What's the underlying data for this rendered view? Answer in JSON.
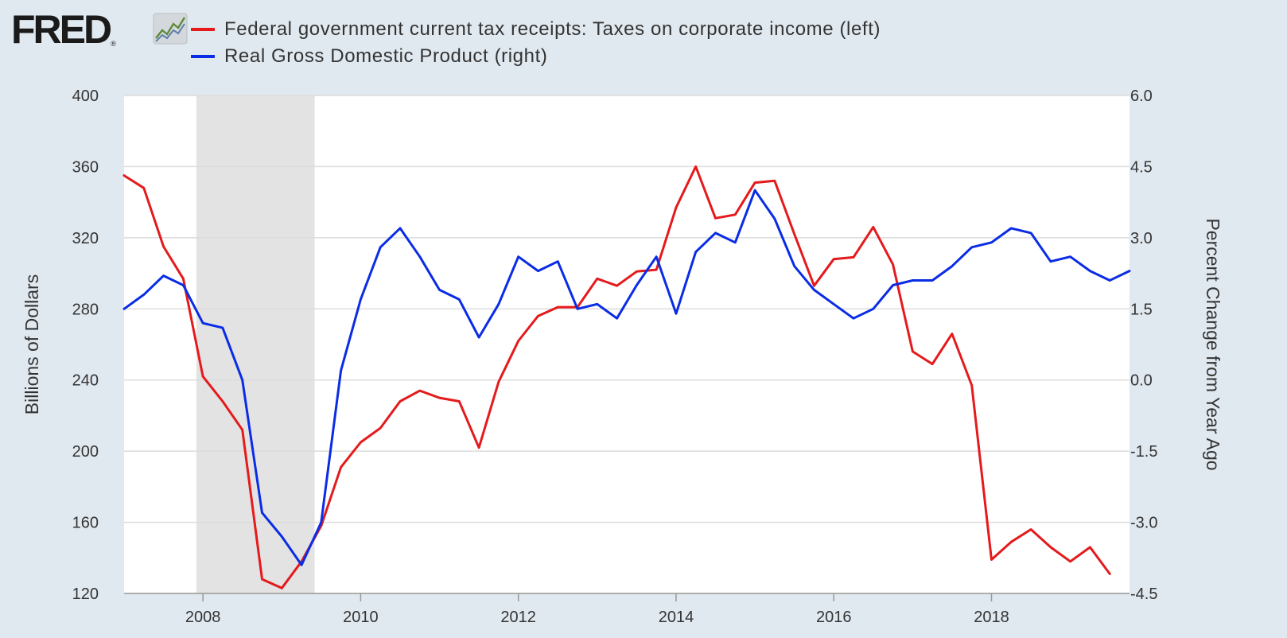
{
  "logo": {
    "text": "FRED",
    "reg": "®",
    "icon": "line-chart-icon"
  },
  "chart_data": {
    "type": "line",
    "title": "",
    "xlabel": "",
    "ylabel_left": "Billions of Dollars",
    "ylabel_right": "Percent Change from Year Ago",
    "ylim_left": [
      120,
      400
    ],
    "ylim_right": [
      -4.5,
      6.0
    ],
    "yticks_left": [
      "400",
      "360",
      "320",
      "280",
      "240",
      "200",
      "160",
      "120"
    ],
    "yticks_right": [
      "6.0",
      "4.5",
      "3.0",
      "1.5",
      "0.0",
      "-1.5",
      "-3.0",
      "-4.5"
    ],
    "xlim": [
      "2007-01-01",
      "2019-10-01"
    ],
    "xticks": [
      "2008",
      "2010",
      "2012",
      "2014",
      "2016",
      "2018"
    ],
    "grid": "horizontal",
    "legend_position": "top",
    "recession": {
      "start": "2007-12-01",
      "end": "2009-06-01",
      "color": "#e3e3e3"
    },
    "series": [
      {
        "name": "Federal government current tax receipts: Taxes on corporate income (left)",
        "axis": "left",
        "color": "#e41a1c",
        "x": [
          "2007-01",
          "2007-04",
          "2007-07",
          "2007-10",
          "2008-01",
          "2008-04",
          "2008-07",
          "2008-10",
          "2009-01",
          "2009-04",
          "2009-07",
          "2009-10",
          "2010-01",
          "2010-04",
          "2010-07",
          "2010-10",
          "2011-01",
          "2011-04",
          "2011-07",
          "2011-10",
          "2012-01",
          "2012-04",
          "2012-07",
          "2012-10",
          "2013-01",
          "2013-04",
          "2013-07",
          "2013-10",
          "2014-01",
          "2014-04",
          "2014-07",
          "2014-10",
          "2015-01",
          "2015-04",
          "2015-07",
          "2015-10",
          "2016-01",
          "2016-04",
          "2016-07",
          "2016-10",
          "2017-01",
          "2017-04",
          "2017-07",
          "2017-10",
          "2018-01",
          "2018-04",
          "2018-07",
          "2018-10",
          "2019-01",
          "2019-04",
          "2019-07"
        ],
        "values": [
          355,
          348,
          315,
          297,
          242,
          228,
          212,
          128,
          123,
          138,
          158,
          191,
          205,
          213,
          228,
          234,
          230,
          228,
          202,
          239,
          262,
          276,
          281,
          281,
          297,
          293,
          301,
          302,
          337,
          360,
          331,
          333,
          351,
          352,
          322,
          293,
          308,
          309,
          326,
          305,
          256,
          249,
          266,
          237,
          139,
          149,
          156,
          146,
          138,
          146,
          131
        ]
      },
      {
        "name": "Real Gross Domestic Product (right)",
        "axis": "right",
        "color": "#0b2ce5",
        "x": [
          "2007-01",
          "2007-04",
          "2007-07",
          "2007-10",
          "2008-01",
          "2008-04",
          "2008-07",
          "2008-10",
          "2009-01",
          "2009-04",
          "2009-07",
          "2009-10",
          "2010-01",
          "2010-04",
          "2010-07",
          "2010-10",
          "2011-01",
          "2011-04",
          "2011-07",
          "2011-10",
          "2012-01",
          "2012-04",
          "2012-07",
          "2012-10",
          "2013-01",
          "2013-04",
          "2013-07",
          "2013-10",
          "2014-01",
          "2014-04",
          "2014-07",
          "2014-10",
          "2015-01",
          "2015-04",
          "2015-07",
          "2015-10",
          "2016-01",
          "2016-04",
          "2016-07",
          "2016-10",
          "2017-01",
          "2017-04",
          "2017-07",
          "2017-10",
          "2018-01",
          "2018-04",
          "2018-07",
          "2018-10",
          "2019-01",
          "2019-04",
          "2019-07",
          "2019-10"
        ],
        "values": [
          1.5,
          1.8,
          2.2,
          2.0,
          1.2,
          1.1,
          0.0,
          -2.8,
          -3.3,
          -3.9,
          -3.0,
          0.2,
          1.7,
          2.8,
          3.2,
          2.6,
          1.9,
          1.7,
          0.9,
          1.6,
          2.6,
          2.3,
          2.5,
          1.5,
          1.6,
          1.3,
          2.0,
          2.6,
          1.4,
          2.7,
          3.1,
          2.9,
          4.0,
          3.4,
          2.4,
          1.9,
          1.6,
          1.3,
          1.5,
          2.0,
          2.1,
          2.1,
          2.4,
          2.8,
          2.9,
          3.2,
          3.1,
          2.5,
          2.6,
          2.3,
          2.1,
          2.3
        ]
      }
    ]
  }
}
